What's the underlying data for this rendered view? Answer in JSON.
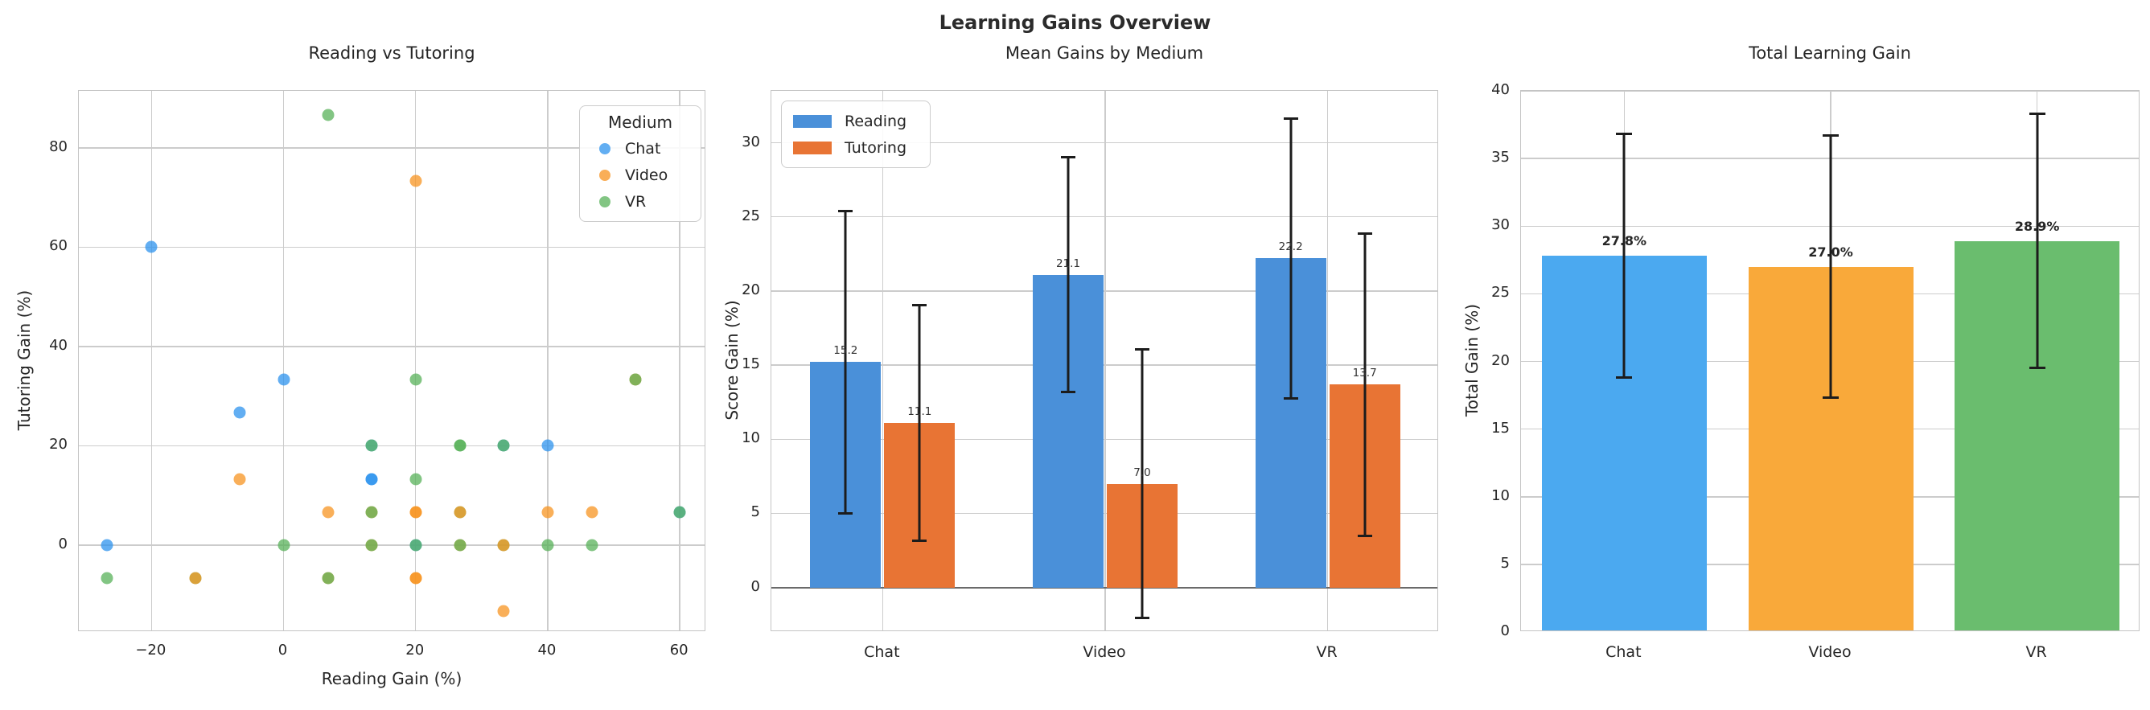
{
  "figure": {
    "title": "Learning Gains Overview"
  },
  "styles": {
    "text_color": "#262626",
    "grid_color": "#cccccc",
    "spine_color": "#c4c4c4",
    "zero_line_color": "#6a6a6a",
    "error_bar_color": "#1c1c1c"
  },
  "chart_data": [
    {
      "type": "scatter",
      "title": "Reading vs Tutoring",
      "xlabel": "Reading Gain (%)",
      "ylabel": "Tutoring Gain (%)",
      "xlim": [
        -31,
        64
      ],
      "ylim": [
        -17.5,
        91.5
      ],
      "xticks": [
        -20,
        0,
        20,
        40,
        60
      ],
      "yticks": [
        0,
        20,
        40,
        60,
        80
      ],
      "grid": true,
      "marker_size": 15,
      "marker_alpha": 0.75,
      "series_colors": {
        "Chat": "#2E93EE",
        "Video": "#F79421",
        "VR": "#58B25A"
      },
      "legend": {
        "title": "Medium",
        "position": "top-right",
        "entries": [
          {
            "label": "Chat",
            "color": "#62AEF2"
          },
          {
            "label": "Video",
            "color": "#F9AE58"
          },
          {
            "label": "VR",
            "color": "#82C583"
          }
        ]
      },
      "points": [
        {
          "x": -26.7,
          "y": 0,
          "s": "Chat"
        },
        {
          "x": -20,
          "y": 60,
          "s": "Chat"
        },
        {
          "x": -6.7,
          "y": 26.7,
          "s": "Chat"
        },
        {
          "x": 0,
          "y": 33.3,
          "s": "Chat"
        },
        {
          "x": 40,
          "y": 20,
          "s": "Chat"
        },
        {
          "x": 13.3,
          "y": 13.3,
          "s": "Chat"
        },
        {
          "x": 13.3,
          "y": 13.3,
          "s": "Chat"
        },
        {
          "x": 13.3,
          "y": 20,
          "s": "Chat"
        },
        {
          "x": 33.3,
          "y": 20,
          "s": "Chat"
        },
        {
          "x": 20,
          "y": 0,
          "s": "Chat"
        },
        {
          "x": 60,
          "y": 6.7,
          "s": "Chat"
        },
        {
          "x": 20,
          "y": 73.3,
          "s": "Video"
        },
        {
          "x": -6.7,
          "y": 13.3,
          "s": "Video"
        },
        {
          "x": 6.7,
          "y": 6.7,
          "s": "Video"
        },
        {
          "x": 40,
          "y": 6.7,
          "s": "Video"
        },
        {
          "x": 46.7,
          "y": 6.7,
          "s": "Video"
        },
        {
          "x": 33.3,
          "y": -13.3,
          "s": "Video"
        },
        {
          "x": 20,
          "y": 6.7,
          "s": "Video"
        },
        {
          "x": 20,
          "y": 6.7,
          "s": "Video"
        },
        {
          "x": 20,
          "y": -6.7,
          "s": "Video"
        },
        {
          "x": 20,
          "y": -6.7,
          "s": "Video"
        },
        {
          "x": 13.3,
          "y": 6.7,
          "s": "Video"
        },
        {
          "x": 13.3,
          "y": 0,
          "s": "Video"
        },
        {
          "x": 6.7,
          "y": -6.7,
          "s": "Video"
        },
        {
          "x": 53.3,
          "y": 33.3,
          "s": "Video"
        },
        {
          "x": 26.7,
          "y": 0,
          "s": "Video"
        },
        {
          "x": 6.7,
          "y": 86.7,
          "s": "VR"
        },
        {
          "x": 20,
          "y": 33.3,
          "s": "VR"
        },
        {
          "x": 20,
          "y": 13.3,
          "s": "VR"
        },
        {
          "x": 0,
          "y": 0,
          "s": "VR"
        },
        {
          "x": 40,
          "y": 0,
          "s": "VR"
        },
        {
          "x": 46.7,
          "y": 0,
          "s": "VR"
        },
        {
          "x": -26.7,
          "y": -6.7,
          "s": "VR"
        },
        {
          "x": 26.7,
          "y": 20,
          "s": "VR"
        },
        {
          "x": 26.7,
          "y": 20,
          "s": "VR"
        },
        {
          "x": 13.3,
          "y": 20,
          "s": "VR"
        },
        {
          "x": 33.3,
          "y": 20,
          "s": "VR"
        },
        {
          "x": 20,
          "y": 0,
          "s": "VR"
        },
        {
          "x": 60,
          "y": 6.7,
          "s": "VR"
        },
        {
          "x": 13.3,
          "y": 6.7,
          "s": "VR"
        },
        {
          "x": 13.3,
          "y": 0,
          "s": "VR"
        },
        {
          "x": 6.7,
          "y": -6.7,
          "s": "VR"
        },
        {
          "x": 53.3,
          "y": 33.3,
          "s": "VR"
        },
        {
          "x": 26.7,
          "y": 0,
          "s": "VR"
        },
        {
          "x": 26.7,
          "y": 6.7,
          "s": "VR"
        },
        {
          "x": -13.3,
          "y": -6.7,
          "s": "VR"
        },
        {
          "x": 33.3,
          "y": 0,
          "s": "VR"
        },
        {
          "x": 26.7,
          "y": 6.7,
          "s": "Video"
        },
        {
          "x": -13.3,
          "y": -6.7,
          "s": "Video"
        },
        {
          "x": 33.3,
          "y": 0,
          "s": "Video"
        }
      ]
    },
    {
      "type": "grouped_bar",
      "title": "Mean Gains by Medium",
      "xlabel": "",
      "ylabel": "Score Gain (%)",
      "categories": [
        "Chat",
        "Video",
        "VR"
      ],
      "ylim": [
        -3,
        33.5
      ],
      "yticks": [
        0,
        5,
        10,
        15,
        20,
        25,
        30
      ],
      "grid": true,
      "legend_position": "top-left",
      "series": [
        {
          "name": "Reading",
          "color": "#4A90D9",
          "values": [
            15.2,
            21.1,
            22.2
          ],
          "errors": [
            10.2,
            7.9,
            9.45
          ],
          "labels": [
            "15.2",
            "21.1",
            "22.2"
          ]
        },
        {
          "name": "Tutoring",
          "color": "#E87434",
          "values": [
            11.1,
            7.0,
            13.7
          ],
          "errors": [
            7.95,
            9.05,
            10.2
          ],
          "labels": [
            "11.1",
            "7.0",
            "13.7"
          ]
        }
      ]
    },
    {
      "type": "bar",
      "title": "Total Learning Gain",
      "xlabel": "",
      "ylabel": "Total Gain (%)",
      "categories": [
        "Chat",
        "Video",
        "VR"
      ],
      "ylim": [
        0,
        40
      ],
      "yticks": [
        0,
        5,
        10,
        15,
        20,
        25,
        30,
        35,
        40
      ],
      "grid": true,
      "bars": [
        {
          "label": "27.8%",
          "value": 27.8,
          "error": 9.0,
          "color": "#4BA9F0"
        },
        {
          "label": "27.0%",
          "value": 27.0,
          "error": 9.7,
          "color": "#F9A93A"
        },
        {
          "label": "28.9%",
          "value": 28.9,
          "error": 9.4,
          "color": "#6ABD6E"
        }
      ]
    }
  ]
}
